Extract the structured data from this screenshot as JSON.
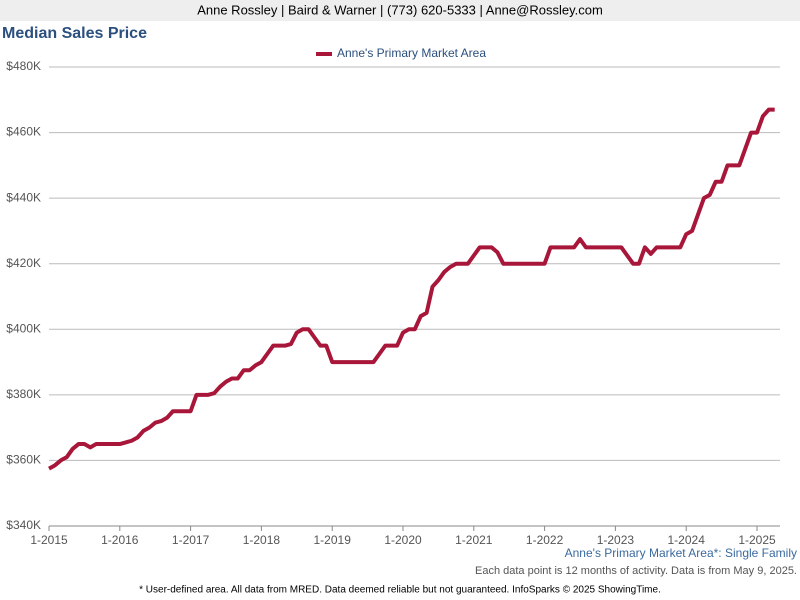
{
  "header": "Anne Rossley | Baird & Warner | (773) 620-5333 | Anne@Rossley.com",
  "chart_data": {
    "type": "line",
    "title": "Median Sales Price",
    "categories": [
      "1-2015",
      null,
      null,
      null,
      null,
      null,
      null,
      null,
      null,
      null,
      null,
      null,
      "1-2016",
      null,
      null,
      null,
      null,
      null,
      null,
      null,
      null,
      null,
      null,
      null,
      "1-2017",
      null,
      null,
      null,
      null,
      null,
      null,
      null,
      null,
      null,
      null,
      null,
      "1-2018",
      null,
      null,
      null,
      null,
      null,
      null,
      null,
      null,
      null,
      null,
      null,
      "1-2019",
      null,
      null,
      null,
      null,
      null,
      null,
      null,
      null,
      null,
      null,
      null,
      "1-2020",
      null,
      null,
      null,
      null,
      null,
      null,
      null,
      null,
      null,
      null,
      null,
      "1-2021",
      null,
      null,
      null,
      null,
      null,
      null,
      null,
      null,
      null,
      null,
      null,
      "1-2022",
      null,
      null,
      null,
      null,
      null,
      null,
      null,
      null,
      null,
      null,
      null,
      "1-2023",
      null,
      null,
      null,
      null,
      null,
      null,
      null,
      null,
      null,
      null,
      null,
      "1-2024",
      null,
      null,
      null,
      null,
      null,
      null,
      null,
      null,
      null,
      null,
      null,
      "1-2025",
      null,
      null,
      null
    ],
    "series": [
      {
        "name": "Anne's Primary Market Area",
        "color": "#a8173a",
        "values": [
          357500,
          358500,
          360000,
          361000,
          363500,
          365000,
          365000,
          364000,
          365000,
          365000,
          365000,
          365000,
          365000,
          365500,
          366000,
          367000,
          369000,
          370000,
          371500,
          372000,
          373000,
          375000,
          375000,
          375000,
          375000,
          380000,
          380000,
          380000,
          380500,
          382500,
          384000,
          385000,
          385000,
          387500,
          387500,
          389000,
          390000,
          392500,
          395000,
          395000,
          395000,
          395500,
          399000,
          400000,
          400000,
          397500,
          395000,
          395000,
          390000,
          390000,
          390000,
          390000,
          390000,
          390000,
          390000,
          390000,
          392500,
          395000,
          395000,
          395000,
          399000,
          400000,
          400000,
          404000,
          405000,
          413000,
          415000,
          417500,
          419000,
          420000,
          420000,
          420000,
          422500,
          425000,
          425000,
          425000,
          423500,
          420000,
          420000,
          420000,
          420000,
          420000,
          420000,
          420000,
          420000,
          425000,
          425000,
          425000,
          425000,
          425000,
          427500,
          425000,
          425000,
          425000,
          425000,
          425000,
          425000,
          425000,
          422500,
          420000,
          420000,
          425000,
          423000,
          425000,
          425000,
          425000,
          425000,
          425000,
          429000,
          430000,
          435000,
          440000,
          441000,
          445000,
          445000,
          450000,
          450000,
          450000,
          455000,
          460000,
          460000,
          465000,
          467000,
          467000
        ]
      }
    ],
    "ylim": [
      340000,
      480000
    ],
    "yticks": [
      {
        "value": 340000,
        "label": "$340K"
      },
      {
        "value": 360000,
        "label": "$360K"
      },
      {
        "value": 380000,
        "label": "$380K"
      },
      {
        "value": 400000,
        "label": "$400K"
      },
      {
        "value": 420000,
        "label": "$420K"
      },
      {
        "value": 440000,
        "label": "$440K"
      },
      {
        "value": 460000,
        "label": "$460K"
      },
      {
        "value": 480000,
        "label": "$480K"
      }
    ],
    "grid": true,
    "subtitle": "Anne's Primary Market Area*: Single Family",
    "note": "Each data point is 12 months of activity. Data is from May 9, 2025."
  },
  "footnote": "* User-defined area. All data from MRED. Data deemed reliable but not guaranteed. InfoSparks © 2025 ShowingTime."
}
